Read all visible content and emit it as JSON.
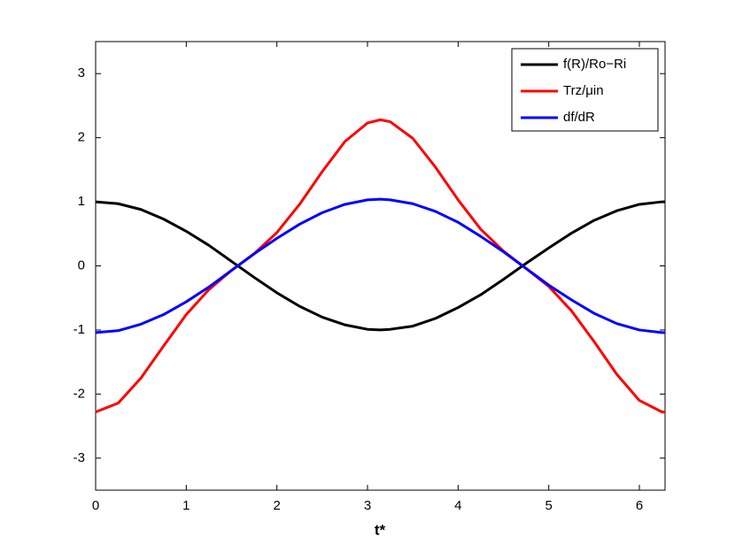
{
  "chart_data": {
    "type": "line",
    "x_label": "t*",
    "x": [
      0,
      0.25,
      0.5,
      0.75,
      1.0,
      1.25,
      1.5,
      1.75,
      2.0,
      2.25,
      2.5,
      2.75,
      3.0,
      3.1416,
      3.25,
      3.5,
      3.75,
      4.0,
      4.25,
      4.5,
      4.75,
      5.0,
      5.25,
      5.5,
      5.75,
      6.0,
      6.25,
      6.2832
    ],
    "series": [
      {
        "name": "f(R)/Ro−Ri",
        "color": "#000000",
        "values": [
          1,
          0.97,
          0.88,
          0.73,
          0.54,
          0.32,
          0.07,
          -0.18,
          -0.42,
          -0.63,
          -0.8,
          -0.92,
          -0.99,
          -1,
          -0.99,
          -0.94,
          -0.82,
          -0.65,
          -0.45,
          -0.21,
          0.04,
          0.28,
          0.51,
          0.71,
          0.86,
          0.96,
          1.0,
          1
        ]
      },
      {
        "name": "Trz/μin",
        "color": "#ff0000",
        "values": [
          -2.28,
          -2.14,
          -1.75,
          -1.25,
          -0.76,
          -0.37,
          -0.07,
          0.19,
          0.52,
          0.96,
          1.47,
          1.94,
          2.23,
          2.28,
          2.25,
          1.99,
          1.54,
          1.03,
          0.57,
          0.23,
          -0.04,
          -0.32,
          -0.7,
          -1.18,
          -1.69,
          -2.1,
          -2.28,
          -2.28
        ]
      },
      {
        "name": "df/dR",
        "color": "#0000ff",
        "values": [
          -1.04,
          -1.01,
          -0.91,
          -0.76,
          -0.56,
          -0.33,
          -0.07,
          0.19,
          0.43,
          0.65,
          0.83,
          0.96,
          1.03,
          1.04,
          1.03,
          0.97,
          0.85,
          0.68,
          0.46,
          0.22,
          -0.04,
          -0.3,
          -0.53,
          -0.74,
          -0.9,
          -1.0,
          -1.04,
          -1.04
        ]
      }
    ],
    "xlim": [
      0,
      6.2832
    ],
    "xticks": [
      0,
      1,
      2,
      3,
      4,
      5,
      6
    ],
    "ylim": [
      -3.5,
      3.5
    ],
    "yticks": [
      -3,
      -2,
      -1,
      0,
      1,
      2,
      3
    ],
    "grid": false,
    "legend": "upper right"
  }
}
